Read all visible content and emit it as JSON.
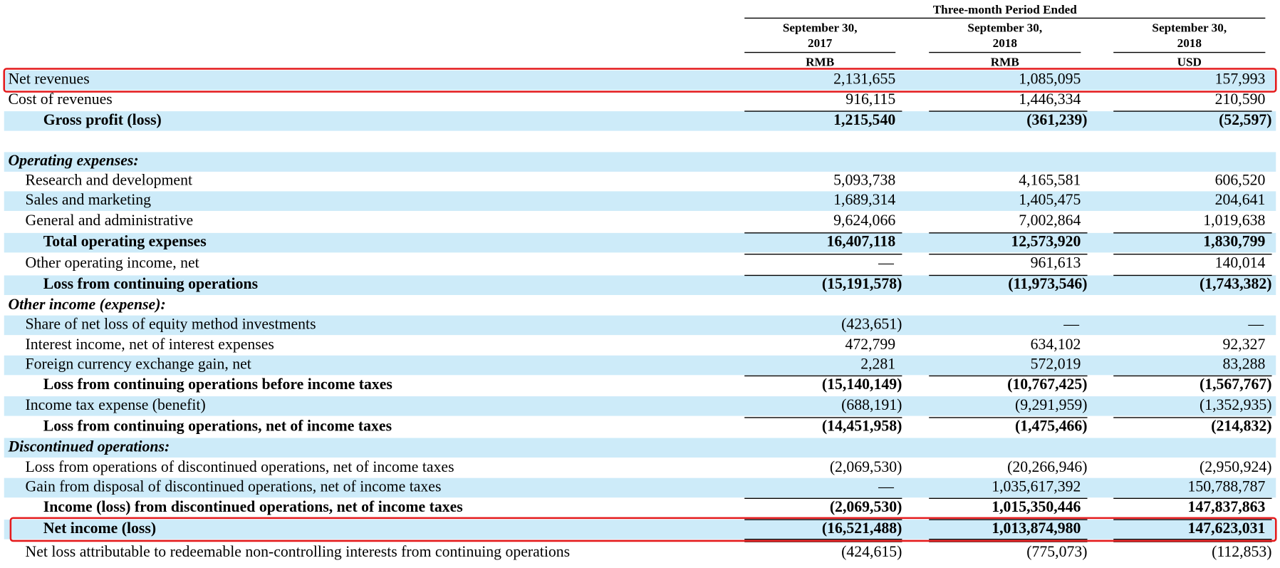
{
  "header": {
    "group": "Three-month Period Ended",
    "columns": [
      {
        "date": "September 30,",
        "year": "2017",
        "currency": "RMB"
      },
      {
        "date": "September 30,",
        "year": "2018",
        "currency": "RMB"
      },
      {
        "date": "September 30,",
        "year": "2018",
        "currency": "USD"
      }
    ]
  },
  "rows": [
    {
      "label": "Net revenues",
      "values": [
        "2,131,655",
        "1,085,095",
        "157,993"
      ]
    },
    {
      "label": "Cost of revenues",
      "values": [
        "916,115",
        "1,446,334",
        "210,590"
      ]
    },
    {
      "label": "Gross profit (loss)",
      "values": [
        "1,215,540",
        "(361,239)",
        "(52,597)"
      ]
    },
    {
      "label": "Operating expenses:"
    },
    {
      "label": "Research and development",
      "values": [
        "5,093,738",
        "4,165,581",
        "606,520"
      ]
    },
    {
      "label": "Sales and marketing",
      "values": [
        "1,689,314",
        "1,405,475",
        "204,641"
      ]
    },
    {
      "label": "General and administrative",
      "values": [
        "9,624,066",
        "7,002,864",
        "1,019,638"
      ]
    },
    {
      "label": "Total operating expenses",
      "values": [
        "16,407,118",
        "12,573,920",
        "1,830,799"
      ]
    },
    {
      "label": "Other operating income, net",
      "values": [
        "—",
        "961,613",
        "140,014"
      ]
    },
    {
      "label": "Loss from continuing operations",
      "values": [
        "(15,191,578)",
        "(11,973,546)",
        "(1,743,382)"
      ]
    },
    {
      "label": "Other income (expense):"
    },
    {
      "label": "Share of net loss of equity method investments",
      "values": [
        "(423,651)",
        "—",
        "—"
      ]
    },
    {
      "label": "Interest income, net of interest expenses",
      "values": [
        "472,799",
        "634,102",
        "92,327"
      ]
    },
    {
      "label": "Foreign currency exchange gain, net",
      "values": [
        "2,281",
        "572,019",
        "83,288"
      ]
    },
    {
      "label": "Loss from continuing operations before income taxes",
      "values": [
        "(15,140,149)",
        "(10,767,425)",
        "(1,567,767)"
      ]
    },
    {
      "label": "Income tax expense (benefit)",
      "values": [
        "(688,191)",
        "(9,291,959)",
        "(1,352,935)"
      ]
    },
    {
      "label": "Loss from continuing operations, net of income taxes",
      "values": [
        "(14,451,958)",
        "(1,475,466)",
        "(214,832)"
      ]
    },
    {
      "label": "Discontinued operations:"
    },
    {
      "label": "Loss from operations of discontinued operations, net of income taxes",
      "values": [
        "(2,069,530)",
        "(20,266,946)",
        "(2,950,924)"
      ]
    },
    {
      "label": "Gain from disposal of discontinued operations, net of income taxes",
      "values": [
        "—",
        "1,035,617,392",
        "150,788,787"
      ]
    },
    {
      "label": "Income (loss) from discontinued operations, net of income taxes",
      "values": [
        "(2,069,530)",
        "1,015,350,446",
        "147,837,863"
      ]
    },
    {
      "label": "Net income (loss)",
      "values": [
        "(16,521,488)",
        "1,013,874,980",
        "147,623,031"
      ]
    },
    {
      "label": "Net loss attributable to redeemable non-controlling interests from continuing operations",
      "values": [
        "(424,615)",
        "(775,073)",
        "(112,853)"
      ]
    }
  ]
}
